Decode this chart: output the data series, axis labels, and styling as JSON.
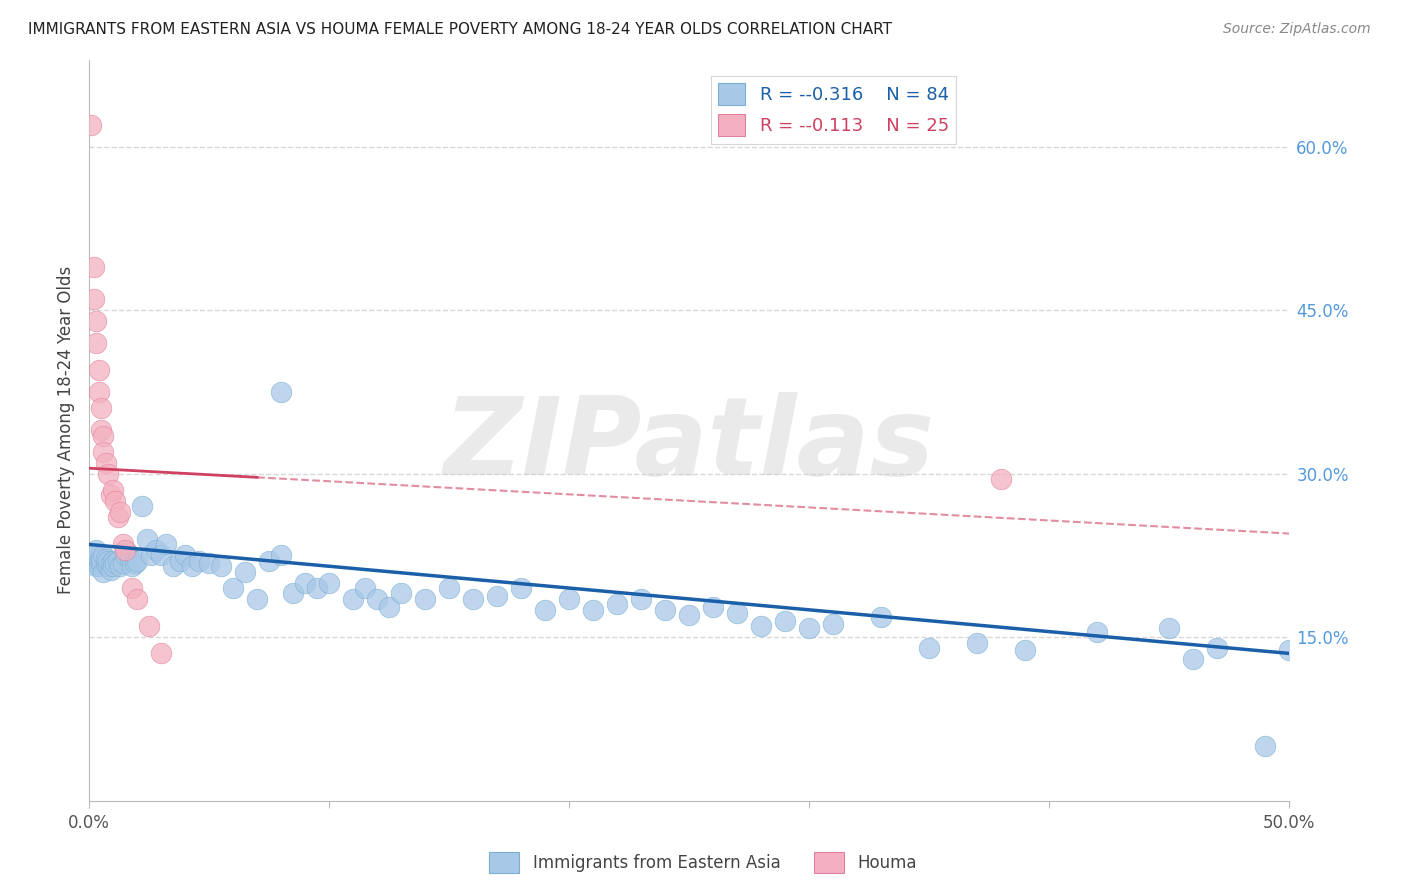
{
  "title": "IMMIGRANTS FROM EASTERN ASIA VS HOUMA FEMALE POVERTY AMONG 18-24 YEAR OLDS CORRELATION CHART",
  "source": "Source: ZipAtlas.com",
  "ylabel": "Female Poverty Among 18-24 Year Olds",
  "watermark": "ZIPatlas",
  "xlim": [
    0.0,
    0.5
  ],
  "ylim": [
    0.0,
    0.68
  ],
  "xticks": [
    0.0,
    0.1,
    0.2,
    0.3,
    0.4,
    0.5
  ],
  "xticklabels": [
    "0.0%",
    "",
    "",
    "",
    "",
    "50.0%"
  ],
  "yticks_right": [
    0.15,
    0.3,
    0.45,
    0.6
  ],
  "ytick_right_labels": [
    "15.0%",
    "30.0%",
    "45.0%",
    "60.0%"
  ],
  "blue_color": "#a8c8e8",
  "blue_edge_color": "#7aafd0",
  "blue_line_color": "#1a5fa8",
  "pink_color": "#f4b0c0",
  "pink_edge_color": "#e080a0",
  "pink_line_color": "#d04060",
  "legend_R_blue": "-0.316",
  "legend_N_blue": "84",
  "legend_R_pink": "-0.113",
  "legend_N_pink": "25",
  "blue_trend_x0": 0.0,
  "blue_trend_y0": 0.235,
  "blue_trend_x1": 0.5,
  "blue_trend_y1": 0.135,
  "pink_trend_x0": 0.0,
  "pink_trend_y0": 0.305,
  "pink_trend_x1": 0.5,
  "pink_trend_y1": 0.245,
  "background_color": "#ffffff",
  "grid_color": "#d8d8d8",
  "blue_scatter_x": [
    0.001,
    0.002,
    0.003,
    0.003,
    0.004,
    0.004,
    0.005,
    0.005,
    0.006,
    0.006,
    0.007,
    0.007,
    0.008,
    0.008,
    0.009,
    0.009,
    0.01,
    0.01,
    0.011,
    0.012,
    0.013,
    0.014,
    0.015,
    0.016,
    0.017,
    0.018,
    0.019,
    0.02,
    0.022,
    0.024,
    0.026,
    0.028,
    0.03,
    0.032,
    0.035,
    0.038,
    0.04,
    0.043,
    0.046,
    0.05,
    0.055,
    0.06,
    0.065,
    0.07,
    0.075,
    0.08,
    0.085,
    0.09,
    0.095,
    0.1,
    0.11,
    0.115,
    0.12,
    0.125,
    0.13,
    0.14,
    0.15,
    0.16,
    0.17,
    0.18,
    0.19,
    0.2,
    0.21,
    0.22,
    0.23,
    0.24,
    0.25,
    0.26,
    0.27,
    0.28,
    0.29,
    0.3,
    0.31,
    0.33,
    0.35,
    0.37,
    0.39,
    0.42,
    0.45,
    0.46,
    0.47,
    0.49,
    0.5,
    0.08
  ],
  "blue_scatter_y": [
    0.22,
    0.225,
    0.215,
    0.23,
    0.22,
    0.215,
    0.218,
    0.222,
    0.21,
    0.225,
    0.218,
    0.222,
    0.215,
    0.22,
    0.218,
    0.212,
    0.22,
    0.215,
    0.218,
    0.22,
    0.215,
    0.218,
    0.225,
    0.228,
    0.222,
    0.215,
    0.218,
    0.22,
    0.27,
    0.24,
    0.225,
    0.23,
    0.225,
    0.235,
    0.215,
    0.22,
    0.225,
    0.215,
    0.22,
    0.218,
    0.215,
    0.195,
    0.21,
    0.185,
    0.22,
    0.225,
    0.19,
    0.2,
    0.195,
    0.2,
    0.185,
    0.195,
    0.185,
    0.178,
    0.19,
    0.185,
    0.195,
    0.185,
    0.188,
    0.195,
    0.175,
    0.185,
    0.175,
    0.18,
    0.185,
    0.175,
    0.17,
    0.178,
    0.172,
    0.16,
    0.165,
    0.158,
    0.162,
    0.168,
    0.14,
    0.145,
    0.138,
    0.155,
    0.158,
    0.13,
    0.14,
    0.05,
    0.138,
    0.375
  ],
  "pink_scatter_x": [
    0.001,
    0.002,
    0.002,
    0.003,
    0.003,
    0.004,
    0.004,
    0.005,
    0.005,
    0.006,
    0.006,
    0.007,
    0.008,
    0.009,
    0.01,
    0.011,
    0.012,
    0.013,
    0.014,
    0.015,
    0.018,
    0.02,
    0.025,
    0.03,
    0.38
  ],
  "pink_scatter_y": [
    0.62,
    0.49,
    0.46,
    0.44,
    0.42,
    0.395,
    0.375,
    0.36,
    0.34,
    0.335,
    0.32,
    0.31,
    0.3,
    0.28,
    0.285,
    0.275,
    0.26,
    0.265,
    0.235,
    0.23,
    0.195,
    0.185,
    0.16,
    0.135,
    0.295
  ]
}
